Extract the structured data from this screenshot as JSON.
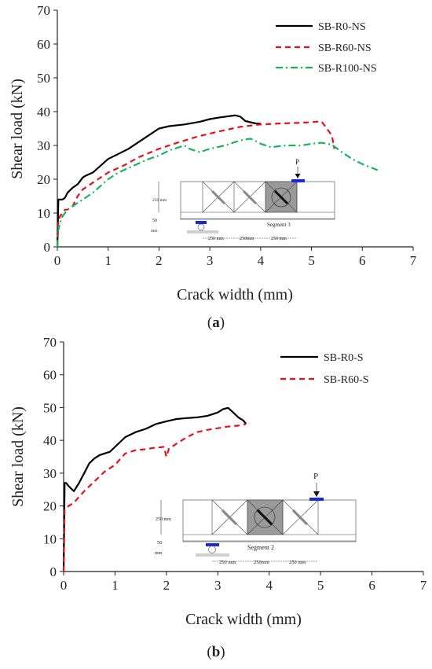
{
  "panels": [
    {
      "caption_prefix": "(",
      "caption_letter": "a",
      "caption_suffix": ")",
      "inset": {
        "load_label": "P",
        "segment_label": "Segment 3",
        "dim_height": "250 mm",
        "dim_support": "50",
        "dim_unit": "mm",
        "dim_spans": [
          "250 mm",
          "250mm",
          "250 mm"
        ]
      }
    },
    {
      "caption_prefix": "(",
      "caption_letter": "b",
      "caption_suffix": ")",
      "inset": {
        "load_label": "P",
        "segment_label": "Segment 2",
        "dim_height": "250 mm",
        "dim_support": "50",
        "dim_unit": "mm",
        "dim_spans": [
          "250 mm",
          "250mm",
          "250 mm"
        ]
      }
    }
  ],
  "chart_data": [
    {
      "type": "line",
      "title": "",
      "xlabel": "Crack width (mm)",
      "ylabel": "Shear load (kN)",
      "xlim": [
        0,
        7
      ],
      "ylim": [
        0,
        70
      ],
      "xticks": [
        0,
        1,
        2,
        3,
        4,
        5,
        6,
        7
      ],
      "yticks": [
        0,
        10,
        20,
        30,
        40,
        50,
        60,
        70
      ],
      "grid": false,
      "legend": "top-right",
      "series": [
        {
          "name": "SB-R0-NS",
          "color": "#000000",
          "dash": "solid",
          "x": [
            0,
            0.02,
            0.05,
            0.1,
            0.15,
            0.2,
            0.3,
            0.4,
            0.5,
            0.55,
            0.7,
            0.85,
            1.0,
            1.2,
            1.4,
            1.6,
            1.8,
            2.0,
            2.2,
            2.5,
            2.8,
            3.0,
            3.2,
            3.4,
            3.5,
            3.6,
            3.7,
            3.9,
            4.0
          ],
          "y": [
            0,
            14,
            14,
            14,
            14.5,
            16,
            17.5,
            18.5,
            20.5,
            21,
            22,
            24,
            26,
            27.5,
            29,
            31,
            33,
            35,
            35.7,
            36.2,
            37,
            37.8,
            38.3,
            38.7,
            38.9,
            38.5,
            37.2,
            36.5,
            36.4
          ]
        },
        {
          "name": "SB-R60-NS",
          "color": "#e8101c",
          "dash": "dashed",
          "x": [
            0,
            0.02,
            0.05,
            0.1,
            0.15,
            0.2,
            0.3,
            0.4,
            0.5,
            0.6,
            0.8,
            1.0,
            1.3,
            1.6,
            2.0,
            2.4,
            2.8,
            3.2,
            3.6,
            4.0,
            4.4,
            4.8,
            5.0,
            5.2,
            5.3,
            5.4,
            5.45
          ],
          "y": [
            0,
            7,
            9,
            10,
            11,
            11,
            12,
            15,
            17,
            18,
            20,
            22,
            24,
            26.5,
            29,
            31,
            32.8,
            34.2,
            35.5,
            36.2,
            36.5,
            36.7,
            36.9,
            37.1,
            35,
            33,
            29
          ]
        },
        {
          "name": "SB-R100-NS",
          "color": "#19b35c",
          "dash": "dashdot",
          "x": [
            0,
            0.02,
            0.05,
            0.1,
            0.2,
            0.3,
            0.4,
            0.5,
            0.7,
            1.0,
            1.2,
            1.5,
            1.8,
            2.0,
            2.2,
            2.4,
            2.5,
            2.6,
            2.7,
            2.8,
            3.0,
            3.3,
            3.6,
            3.8,
            3.9,
            4.0,
            4.2,
            4.5,
            4.8,
            5.0,
            5.2,
            5.4,
            5.6,
            5.8,
            6.0,
            6.3
          ],
          "y": [
            0,
            5,
            7,
            9,
            11,
            12,
            13,
            14,
            16,
            20,
            22,
            24,
            26,
            27,
            28.5,
            29.5,
            30,
            29,
            28.5,
            28,
            29,
            30,
            31.5,
            32,
            31.3,
            30.5,
            29.5,
            30,
            30,
            30.5,
            30.8,
            30.2,
            28,
            26,
            24.5,
            22.7
          ]
        }
      ]
    },
    {
      "type": "line",
      "title": "",
      "xlabel": "Crack width (mm)",
      "ylabel": "Shear load (kN)",
      "xlim": [
        0,
        7
      ],
      "ylim": [
        0,
        70
      ],
      "xticks": [
        0,
        1,
        2,
        3,
        4,
        5,
        6,
        7
      ],
      "yticks": [
        0,
        10,
        20,
        30,
        40,
        50,
        60,
        70
      ],
      "grid": false,
      "legend": "top-right",
      "series": [
        {
          "name": "SB-R0-S",
          "color": "#000000",
          "dash": "solid",
          "x": [
            0,
            0.02,
            0.05,
            0.1,
            0.2,
            0.3,
            0.4,
            0.5,
            0.6,
            0.7,
            0.8,
            0.9,
            1.0,
            1.2,
            1.4,
            1.6,
            1.8,
            2.0,
            2.2,
            2.4,
            2.6,
            2.8,
            3.0,
            3.1,
            3.2,
            3.3,
            3.4,
            3.5,
            3.55
          ],
          "y": [
            0,
            27,
            27,
            26,
            24.5,
            27,
            30,
            33,
            34.5,
            35.5,
            36,
            36.5,
            38,
            41,
            42.5,
            43.5,
            45,
            45.8,
            46.5,
            46.8,
            47,
            47.5,
            48.5,
            49.5,
            49.9,
            48.5,
            47,
            46,
            45
          ]
        },
        {
          "name": "SB-R60-S",
          "color": "#e8101c",
          "dash": "dashed",
          "x": [
            0,
            0.02,
            0.05,
            0.1,
            0.2,
            0.4,
            0.6,
            0.8,
            1.0,
            1.2,
            1.4,
            1.6,
            1.8,
            1.95,
            2.0,
            2.05,
            2.2,
            2.4,
            2.6,
            2.8,
            3.0,
            3.2,
            3.4,
            3.5,
            3.55
          ],
          "y": [
            0,
            19,
            19.5,
            20,
            21,
            24.5,
            27.5,
            30.5,
            32.5,
            36,
            37,
            37.3,
            37.8,
            38,
            35,
            37.5,
            39,
            41,
            42.5,
            43.2,
            43.7,
            44.2,
            44.5,
            44.8,
            45
          ]
        }
      ]
    }
  ]
}
